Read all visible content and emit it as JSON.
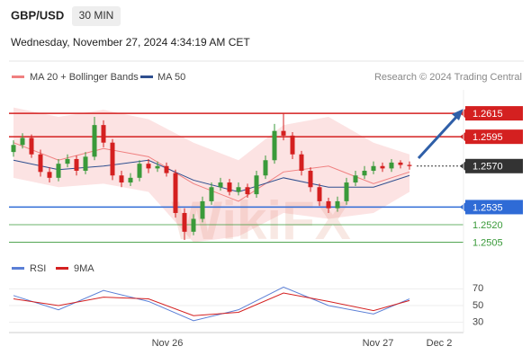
{
  "chart_data": {
    "type": "candlestick",
    "symbol": "GBP/USD",
    "timeframe": "30 MIN",
    "datetime": "Wednesday, November 27, 2024 4:34:19 AM CET",
    "credit": "Research © 2024 Trading Central",
    "watermark": "WikiFX",
    "x_labels": [
      "Nov 26",
      "Nov 27",
      "Dec 2"
    ],
    "ylim": [
      1.2497,
      1.2635
    ],
    "up_color": "#3a9a3a",
    "down_color": "#d42020",
    "candles": {
      "open": [
        1.2582,
        1.2588,
        1.2594,
        1.258,
        1.2565,
        1.256,
        1.2572,
        1.2576,
        1.2566,
        1.2578,
        1.2605,
        1.259,
        1.2562,
        1.2556,
        1.256,
        1.2572,
        1.2568,
        1.257,
        1.2564,
        1.253,
        1.2514,
        1.2525,
        1.254,
        1.2552,
        1.2556,
        1.2548,
        1.2552,
        1.2546,
        1.2562,
        1.2575,
        1.26,
        1.2596,
        1.258,
        1.2566,
        1.2552,
        1.254,
        1.2534,
        1.254,
        1.2556,
        1.2562,
        1.2566,
        1.257,
        1.2568,
        1.2573,
        1.2571
      ],
      "high": [
        1.2592,
        1.2598,
        1.2597,
        1.2584,
        1.2569,
        1.2576,
        1.258,
        1.2579,
        1.2582,
        1.2612,
        1.2609,
        1.2593,
        1.2566,
        1.2564,
        1.2575,
        1.2576,
        1.2574,
        1.2573,
        1.2567,
        1.2534,
        1.2529,
        1.2544,
        1.2556,
        1.256,
        1.2559,
        1.2556,
        1.2555,
        1.2566,
        1.2579,
        1.2606,
        1.2615,
        1.2599,
        1.2583,
        1.2569,
        1.2555,
        1.2543,
        1.2544,
        1.256,
        1.2566,
        1.257,
        1.2574,
        1.2573,
        1.2576,
        1.2575,
        1.2574
      ],
      "low": [
        1.2578,
        1.2585,
        1.2577,
        1.2561,
        1.2556,
        1.2557,
        1.2569,
        1.2562,
        1.2563,
        1.2575,
        1.2586,
        1.2558,
        1.2552,
        1.2553,
        1.2557,
        1.2564,
        1.2565,
        1.2561,
        1.2526,
        1.2507,
        1.2511,
        1.2522,
        1.2537,
        1.2549,
        1.2545,
        1.2545,
        1.2543,
        1.2543,
        1.2559,
        1.2572,
        1.2592,
        1.2576,
        1.2562,
        1.2548,
        1.2536,
        1.253,
        1.2531,
        1.2537,
        1.2553,
        1.2559,
        1.2563,
        1.2565,
        1.2565,
        1.2568,
        1.2567
      ],
      "close": [
        1.2588,
        1.2594,
        1.258,
        1.2565,
        1.256,
        1.2572,
        1.2576,
        1.2566,
        1.2578,
        1.2605,
        1.259,
        1.2562,
        1.2556,
        1.256,
        1.2572,
        1.2568,
        1.257,
        1.2564,
        1.253,
        1.2514,
        1.2525,
        1.254,
        1.2552,
        1.2556,
        1.2548,
        1.2552,
        1.2546,
        1.2562,
        1.2575,
        1.26,
        1.2596,
        1.258,
        1.2566,
        1.2552,
        1.254,
        1.2534,
        1.254,
        1.2556,
        1.2562,
        1.2566,
        1.257,
        1.2568,
        1.2573,
        1.2571,
        1.257
      ]
    },
    "overlay_index": [
      0,
      5,
      10,
      15,
      20,
      25,
      30,
      35,
      40,
      44
    ],
    "bollinger": {
      "name": "MA 20 + Bollinger Bands",
      "color": "#f08080",
      "upper": [
        1.262,
        1.2612,
        1.2618,
        1.261,
        1.259,
        1.2575,
        1.2605,
        1.2612,
        1.259,
        1.258
      ],
      "lower": [
        1.256,
        1.2552,
        1.2555,
        1.2548,
        1.2505,
        1.251,
        1.253,
        1.2525,
        1.253,
        1.2548
      ],
      "values": [
        1.259,
        1.2575,
        1.2585,
        1.2578,
        1.2555,
        1.254,
        1.2565,
        1.257,
        1.2555,
        1.2565
      ]
    },
    "ma50": {
      "name": "MA 50",
      "color": "#2f4f8f",
      "values": [
        1.2575,
        1.2567,
        1.257,
        1.2575,
        1.2558,
        1.2548,
        1.256,
        1.2552,
        1.2552,
        1.2562
      ]
    },
    "levels": [
      {
        "value": 1.2615,
        "color": "#d42020",
        "style": "solid",
        "box": true
      },
      {
        "value": 1.2595,
        "color": "#d42020",
        "style": "solid",
        "box": true
      },
      {
        "value": 1.257,
        "label": "1.2570",
        "color": "#333333",
        "style": "dotted",
        "box": true
      },
      {
        "value": 1.2535,
        "color": "#2f6bd6",
        "style": "solid",
        "box": true
      },
      {
        "value": 1.252,
        "label": "1.2520",
        "color": "#3a9a3a",
        "style": "thin",
        "box": false
      },
      {
        "value": 1.2505,
        "color": "#3a9a3a",
        "style": "thin",
        "box": false
      }
    ],
    "rsi": {
      "ylim": [
        20,
        80
      ],
      "yticks": [
        70,
        50,
        30
      ],
      "series": [
        {
          "name": "RSI",
          "color": "#5b7fd6",
          "values": [
            62,
            45,
            68,
            55,
            32,
            45,
            72,
            50,
            40,
            58
          ]
        },
        {
          "name": "9MA",
          "color": "#d42020",
          "values": [
            58,
            50,
            60,
            58,
            38,
            42,
            65,
            55,
            44,
            56
          ]
        }
      ]
    }
  }
}
